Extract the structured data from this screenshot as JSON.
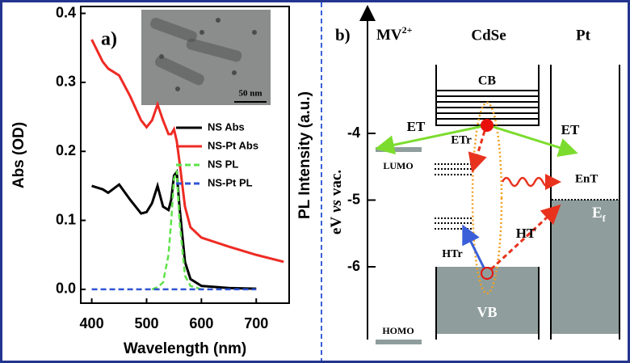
{
  "chart_data": {
    "type": "line",
    "panel_label": "a)",
    "xlabel": "Wavelength (nm)",
    "ylabel": "Abs (OD)",
    "y2label": "PL Intensity (a.u.)",
    "inset_scale": "50 nm",
    "x": [
      400,
      420,
      430,
      450,
      470,
      490,
      500,
      510,
      520,
      530,
      540,
      545,
      550,
      555,
      560,
      570,
      580,
      600,
      650,
      700,
      750
    ],
    "series": [
      {
        "name": "NS Abs",
        "color": "#000000",
        "style": "solid",
        "values": [
          0.15,
          0.145,
          0.14,
          0.152,
          0.13,
          0.11,
          0.112,
          0.125,
          0.15,
          0.12,
          0.115,
          0.13,
          0.165,
          0.17,
          0.12,
          0.04,
          0.015,
          0.005,
          0.002,
          0.001,
          null
        ]
      },
      {
        "name": "NS-Pt Abs",
        "color": "#ee2b24",
        "style": "solid",
        "values": [
          0.362,
          0.33,
          0.32,
          0.31,
          0.28,
          0.245,
          0.235,
          0.245,
          0.268,
          0.245,
          0.225,
          0.225,
          0.232,
          0.215,
          0.185,
          0.12,
          0.09,
          0.075,
          0.062,
          0.05,
          0.04
        ]
      },
      {
        "name": "NS PL",
        "color": "#5fe34a",
        "style": "dashed",
        "values": [
          null,
          null,
          null,
          null,
          null,
          null,
          null,
          0,
          0.003,
          0.01,
          0.05,
          0.1,
          0.16,
          0.172,
          0.1,
          0.02,
          0.005,
          0,
          null,
          null,
          null
        ]
      },
      {
        "name": "NS-Pt PL",
        "color": "#2f55d4",
        "style": "dashed",
        "values": [
          0,
          0,
          0,
          0,
          0,
          0,
          0,
          0,
          0,
          0,
          0,
          0,
          0,
          0,
          0,
          0,
          0,
          0,
          0,
          0,
          null
        ]
      }
    ],
    "xlim": [
      380,
      760
    ],
    "ylim": [
      -0.02,
      0.41
    ],
    "xticks": [
      400,
      500,
      600,
      700
    ],
    "yticks": [
      {
        "value": 0,
        "label": "0.0"
      },
      0.1,
      0.2,
      0.3,
      0.4
    ]
  },
  "diagram": {
    "panel_label": "b)",
    "axis_label": [
      "eV",
      "vs",
      "vac."
    ],
    "yticks": [
      -4,
      -5,
      -6
    ],
    "columns": [
      "MV",
      "CdSe",
      "Pt"
    ],
    "mv_charge": "2+",
    "levels": {
      "cb": "CB",
      "vb": "VB",
      "lumo": "LUMO",
      "homo": "HOMO",
      "fermi": "E",
      "fermi_sub": "f"
    },
    "processes": {
      "et_left": "ET",
      "et_right": "ET",
      "etr": "ETr",
      "ent": "EnT",
      "ht": "HT",
      "htr": "HTr"
    }
  }
}
